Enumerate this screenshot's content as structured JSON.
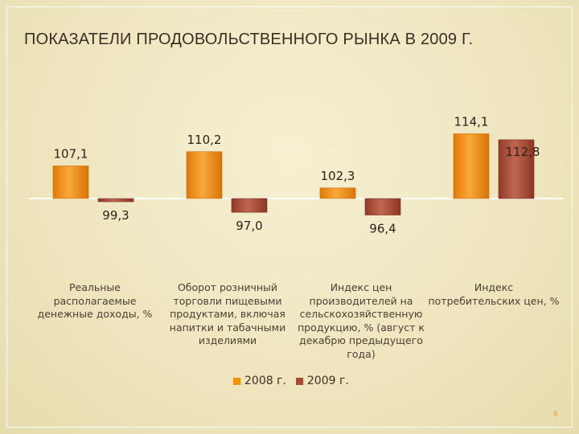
{
  "page": {
    "title": "ПОКАЗАТЕЛИ ПРОДОВОЛЬСТВЕННОГО РЫНКА В 2009 Г.",
    "page_number": "6"
  },
  "colors": {
    "series_2008": "#f0920e",
    "series_2009": "#a84a34",
    "baseline": "#ffffff"
  },
  "chart_data": {
    "type": "bar",
    "title": "ПОКАЗАТЕЛИ ПРОДОВОЛЬСТВЕННОГО РЫНКА В 2009 Г.",
    "baseline": 100,
    "categories": [
      "Реальные располагаемые денежные доходы, %",
      "Оборот розничный торговли пищевыми продуктами, включая напитки и табачными изделиями",
      "Индекс цен производителей на сельскохозяйственную продукцию, % (август к декабрю предыдущего года)",
      "Индекс потребительских цен, %"
    ],
    "series": [
      {
        "name": "2008 г.",
        "values": [
          107.1,
          110.2,
          102.3,
          114.1
        ],
        "labels": [
          "107,1",
          "110,2",
          "102,3",
          "114,1"
        ]
      },
      {
        "name": "2009 г.",
        "values": [
          99.3,
          97.0,
          96.4,
          112.8
        ],
        "labels": [
          "99,3",
          "97,0",
          "96,4",
          "112,8"
        ]
      }
    ],
    "legend_position": "bottom",
    "grid": false
  }
}
